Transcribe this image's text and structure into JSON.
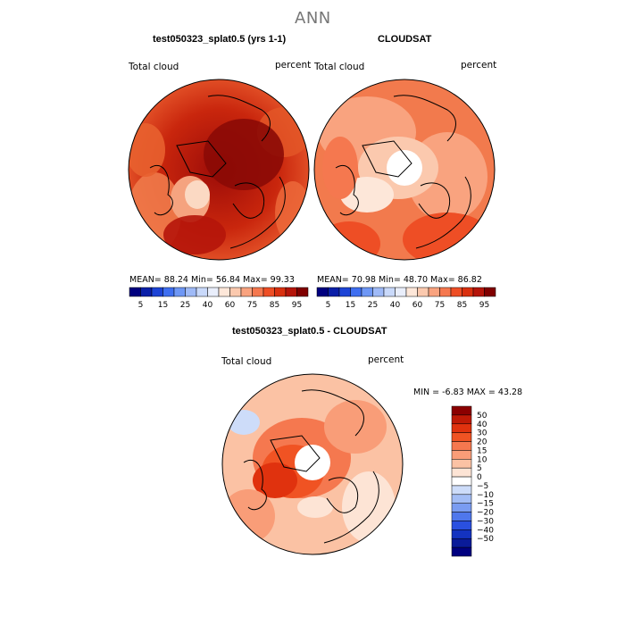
{
  "figure_title": "ANN",
  "panel1": {
    "title": "test050323_splat0.5 (yrs 1-1)",
    "var_label": "Total cloud",
    "units": "percent",
    "stats": "MEAN=  88.24   Min=  56.84   Max=  99.33"
  },
  "panel2": {
    "title": "CLOUDSAT",
    "var_label": "Total cloud",
    "units": "percent",
    "stats": "MEAN=  70.98   Min=  48.70   Max=  86.82"
  },
  "panel3": {
    "title": "test050323_splat0.5 - CLOUDSAT",
    "var_label": "Total cloud",
    "units": "percent",
    "minmax": "MIN =   -6.83  MAX =   43.28"
  },
  "colorbar_top": {
    "labels": [
      "5",
      "15",
      "25",
      "40",
      "60",
      "75",
      "85",
      "95"
    ],
    "colors": [
      "#00007f",
      "#0a1fa8",
      "#1d44d6",
      "#3f6ff0",
      "#6e97f5",
      "#9fbaf7",
      "#c9d9fa",
      "#e9eefb",
      "#fde7d9",
      "#fbc9ae",
      "#f9a37f",
      "#f5784f",
      "#ee4e25",
      "#d9300f",
      "#b5150a",
      "#800000"
    ]
  },
  "colorbar_diff": {
    "labels": [
      "50",
      "40",
      "30",
      "20",
      "15",
      "10",
      "5",
      "0",
      "−5",
      "−10",
      "−15",
      "−20",
      "−30",
      "−40",
      "−50"
    ],
    "colors": [
      "#8b0000",
      "#bf1a06",
      "#e0320e",
      "#f05323",
      "#f5784f",
      "#f99d78",
      "#fbc2a4",
      "#fde4d5",
      "#ffffff",
      "#cddcf9",
      "#a3bdf5",
      "#7a9cf1",
      "#4f77ec",
      "#2a50e0",
      "#1433c0",
      "#0a1b99",
      "#000080"
    ]
  }
}
